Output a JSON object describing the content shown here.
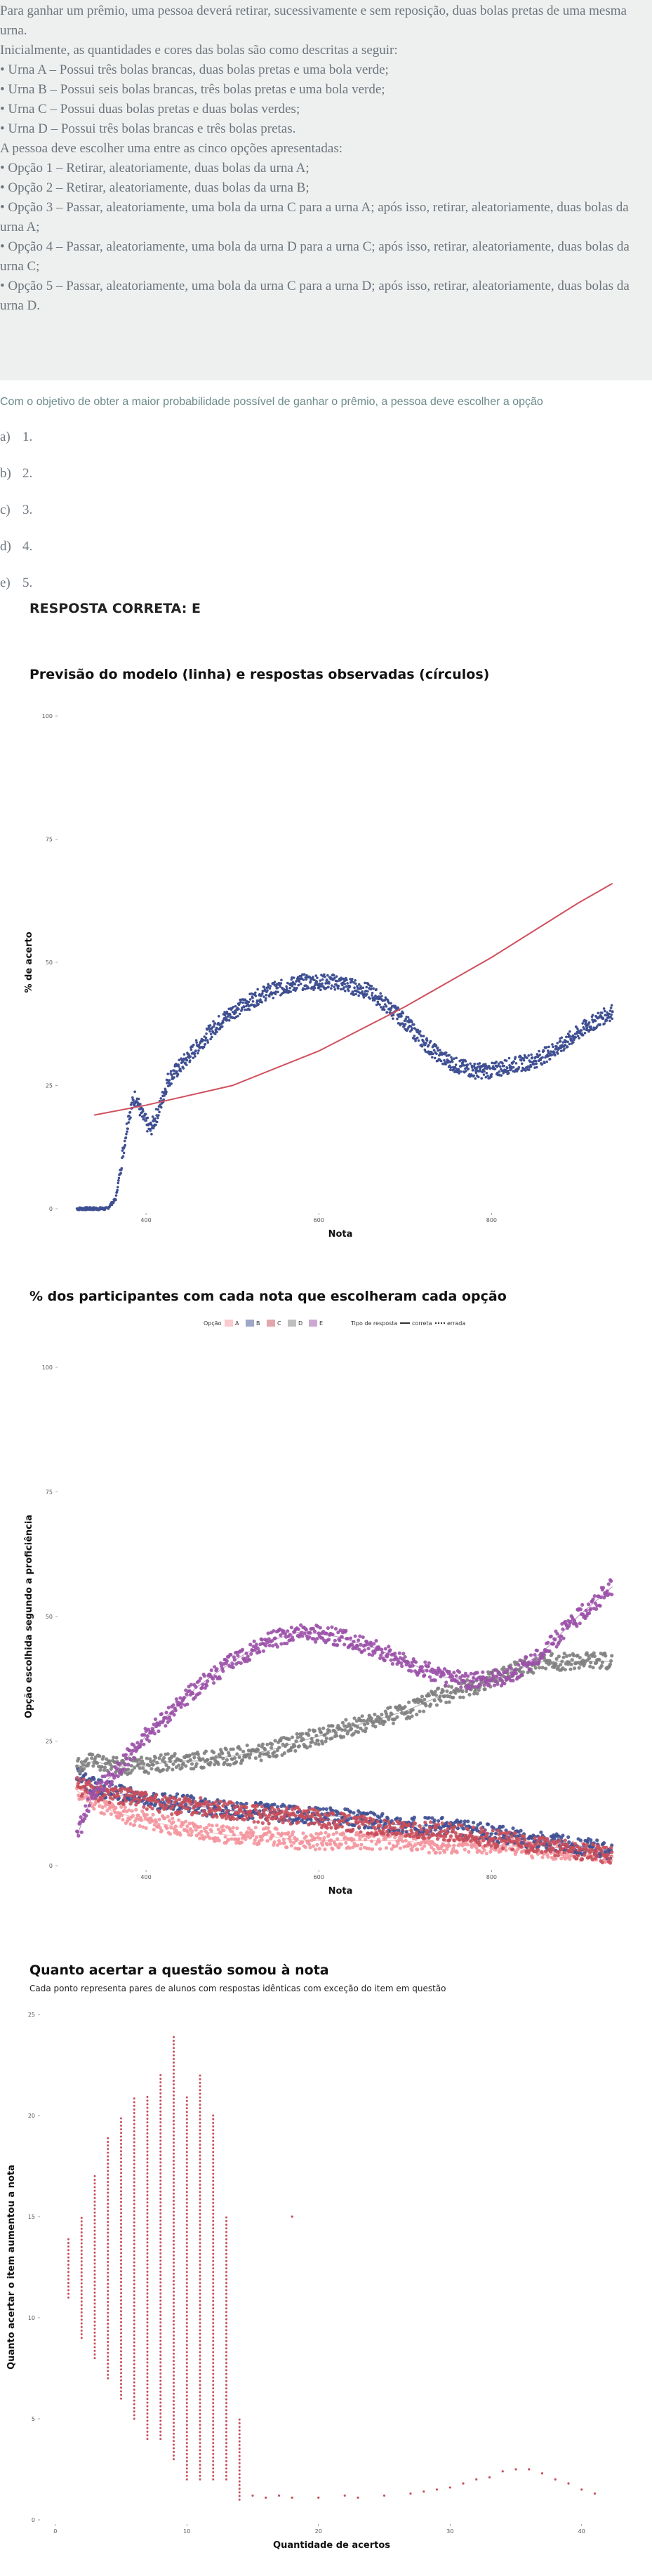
{
  "question": {
    "lines": [
      "Para ganhar um prêmio, uma pessoa deverá retirar, sucessivamente e sem reposição, duas bolas pretas de uma mesma urna.",
      "Inicialmente, as quantidades e cores das bolas são como descritas a seguir:",
      "• Urna A – Possui três bolas brancas, duas bolas pretas e uma bola verde;",
      "• Urna B – Possui seis bolas brancas, três bolas pretas e uma bola verde;",
      "• Urna C – Possui duas bolas pretas e duas bolas verdes;",
      "• Urna D – Possui três bolas brancas e três bolas pretas.",
      "A pessoa deve escolher uma entre as cinco opções apresentadas:",
      "• Opção 1 – Retirar, aleatoriamente, duas bolas da urna A;",
      "• Opção 2 – Retirar, aleatoriamente, duas bolas da urna B;",
      "• Opção 3 – Passar, aleatoriamente, uma bola da urna C para a urna A; após isso, retirar, aleatoriamente, duas bolas da urna A;",
      "• Opção 4 – Passar, aleatoriamente, uma bola da urna D para a urna C; após isso, retirar, aleatoriamente, duas bolas da urna C;",
      "• Opção 5 – Passar, aleatoriamente, uma bola da urna C para a urna D; após isso, retirar, aleatoriamente, duas bolas da urna D."
    ],
    "prompt": "Com o objetivo de obter a maior probabilidade possível de ganhar o prêmio, a pessoa deve escolher a opção",
    "options": [
      {
        "letter": "a)",
        "text": "1."
      },
      {
        "letter": "b)",
        "text": "2."
      },
      {
        "letter": "c)",
        "text": "3."
      },
      {
        "letter": "d)",
        "text": "4."
      },
      {
        "letter": "e)",
        "text": "5."
      }
    ],
    "answer": "RESPOSTA CORRETA: E"
  },
  "chart_data": [
    {
      "type": "scatter",
      "title": "Previsão do modelo (linha) e respostas observadas (círculos)",
      "xlabel": "Nota",
      "ylabel": "% de acerto",
      "xlim": [
        300,
        950
      ],
      "ylim": [
        0,
        100
      ],
      "xticks": [
        "400",
        "600",
        "800"
      ],
      "yticks": [
        "0",
        "25",
        "50",
        "75",
        "100"
      ],
      "colors": {
        "observed": "#3f4f92",
        "model": "#d0505e"
      },
      "observed": {
        "x": [
          320,
          340,
          355,
          365,
          372,
          380,
          388,
          395,
          405,
          415,
          425,
          440,
          460,
          480,
          500,
          520,
          540,
          560,
          580,
          600,
          620,
          640,
          660,
          680,
          700,
          720,
          740,
          760,
          780,
          800,
          820,
          850,
          880,
          910,
          940
        ],
        "y": [
          0,
          0,
          0,
          2,
          10,
          19,
          23,
          19,
          16,
          20,
          26,
          29,
          33,
          37,
          40,
          42,
          44,
          45,
          46,
          46,
          46,
          45,
          44,
          41,
          38,
          34,
          31,
          29,
          28,
          28,
          29,
          30,
          33,
          37,
          40
        ]
      },
      "model": {
        "x": [
          340,
          400,
          500,
          600,
          700,
          800,
          900,
          940
        ],
        "y": [
          19,
          21,
          25,
          32,
          41,
          51,
          62,
          66
        ]
      }
    },
    {
      "type": "scatter",
      "title": "% dos participantes com cada nota que escolheram cada opção",
      "xlabel": "Nota",
      "ylabel": "Opção escolhida segundo a proficiência",
      "xlim": [
        300,
        950
      ],
      "ylim": [
        0,
        100
      ],
      "xticks": [
        "400",
        "600",
        "800"
      ],
      "yticks": [
        "0",
        "25",
        "50",
        "75",
        "100"
      ],
      "legend": {
        "title_option": "Opção",
        "options": [
          "A",
          "B",
          "C",
          "D",
          "E"
        ],
        "title_type": "Tipo de resposta",
        "types": [
          "correta",
          "errada"
        ],
        "placement": "top"
      },
      "x": [
        320,
        340,
        360,
        380,
        400,
        430,
        460,
        500,
        540,
        580,
        620,
        660,
        700,
        740,
        780,
        820,
        860,
        900,
        940
      ],
      "series": [
        {
          "label": "A",
          "color": "#f4959d",
          "values": [
            15,
            13,
            11,
            10,
            9,
            8,
            7,
            6,
            6,
            5,
            5,
            5,
            5,
            4,
            4,
            4,
            3,
            3,
            2
          ]
        },
        {
          "label": "B",
          "color": "#3f4f92",
          "values": [
            18,
            16,
            15,
            14,
            13,
            13,
            12,
            11,
            11,
            10,
            10,
            9,
            8,
            8,
            7,
            6,
            5,
            4,
            3
          ]
        },
        {
          "label": "C",
          "color": "#c84e5b",
          "values": [
            16,
            15,
            14,
            14,
            13,
            12,
            12,
            11,
            10,
            10,
            9,
            8,
            7,
            7,
            6,
            5,
            4,
            3,
            2
          ]
        },
        {
          "label": "D",
          "color": "#808080",
          "values": [
            20,
            21,
            20,
            20,
            20,
            21,
            21,
            22,
            23,
            25,
            27,
            29,
            31,
            34,
            36,
            39,
            41,
            41,
            41
          ]
        },
        {
          "label": "E",
          "color": "#9b51a8",
          "values": [
            6,
            15,
            18,
            22,
            26,
            31,
            36,
            41,
            45,
            47,
            46,
            44,
            41,
            38,
            37,
            38,
            43,
            50,
            56
          ]
        }
      ]
    },
    {
      "type": "scatter",
      "title": "Quanto acertar a questão somou à nota",
      "subtitle": "Cada ponto representa pares de alunos com respostas idênticas com exceção do item em questão",
      "xlabel": "Quantidade de acertos",
      "ylabel": "Quanto acertar o item aumentou a nota",
      "xlim": [
        -1,
        43
      ],
      "ylim": [
        0,
        25
      ],
      "xticks": [
        "0",
        "10",
        "20",
        "30",
        "40"
      ],
      "yticks": [
        "0",
        "5",
        "10",
        "15",
        "20",
        "25"
      ],
      "color": "#c84e5b",
      "columns": [
        {
          "x": 1,
          "min": 11,
          "max": 14
        },
        {
          "x": 2,
          "min": 9,
          "max": 15
        },
        {
          "x": 3,
          "min": 8,
          "max": 17
        },
        {
          "x": 4,
          "min": 7,
          "max": 19
        },
        {
          "x": 5,
          "min": 6,
          "max": 20
        },
        {
          "x": 6,
          "min": 5,
          "max": 21
        },
        {
          "x": 7,
          "min": 4,
          "max": 21
        },
        {
          "x": 8,
          "min": 4,
          "max": 22
        },
        {
          "x": 9,
          "min": 3,
          "max": 24
        },
        {
          "x": 10,
          "min": 2,
          "max": 21
        },
        {
          "x": 11,
          "min": 2,
          "max": 22
        },
        {
          "x": 12,
          "min": 2,
          "max": 20
        },
        {
          "x": 13,
          "min": 2,
          "max": 15
        },
        {
          "x": 14,
          "min": 1,
          "max": 5
        }
      ],
      "points": [
        [
          15,
          1.2
        ],
        [
          16,
          1.1
        ],
        [
          17,
          1.2
        ],
        [
          18,
          1.1
        ],
        [
          18,
          15
        ],
        [
          20,
          1.1
        ],
        [
          22,
          1.2
        ],
        [
          23,
          1.1
        ],
        [
          25,
          1.2
        ],
        [
          27,
          1.3
        ],
        [
          28,
          1.4
        ],
        [
          29,
          1.5
        ],
        [
          30,
          1.6
        ],
        [
          31,
          1.8
        ],
        [
          32,
          2.0
        ],
        [
          33,
          2.1
        ],
        [
          34,
          2.4
        ],
        [
          35,
          2.5
        ],
        [
          36,
          2.5
        ],
        [
          37,
          2.3
        ],
        [
          38,
          2.0
        ],
        [
          39,
          1.8
        ],
        [
          40,
          1.5
        ],
        [
          41,
          1.3
        ]
      ]
    }
  ]
}
